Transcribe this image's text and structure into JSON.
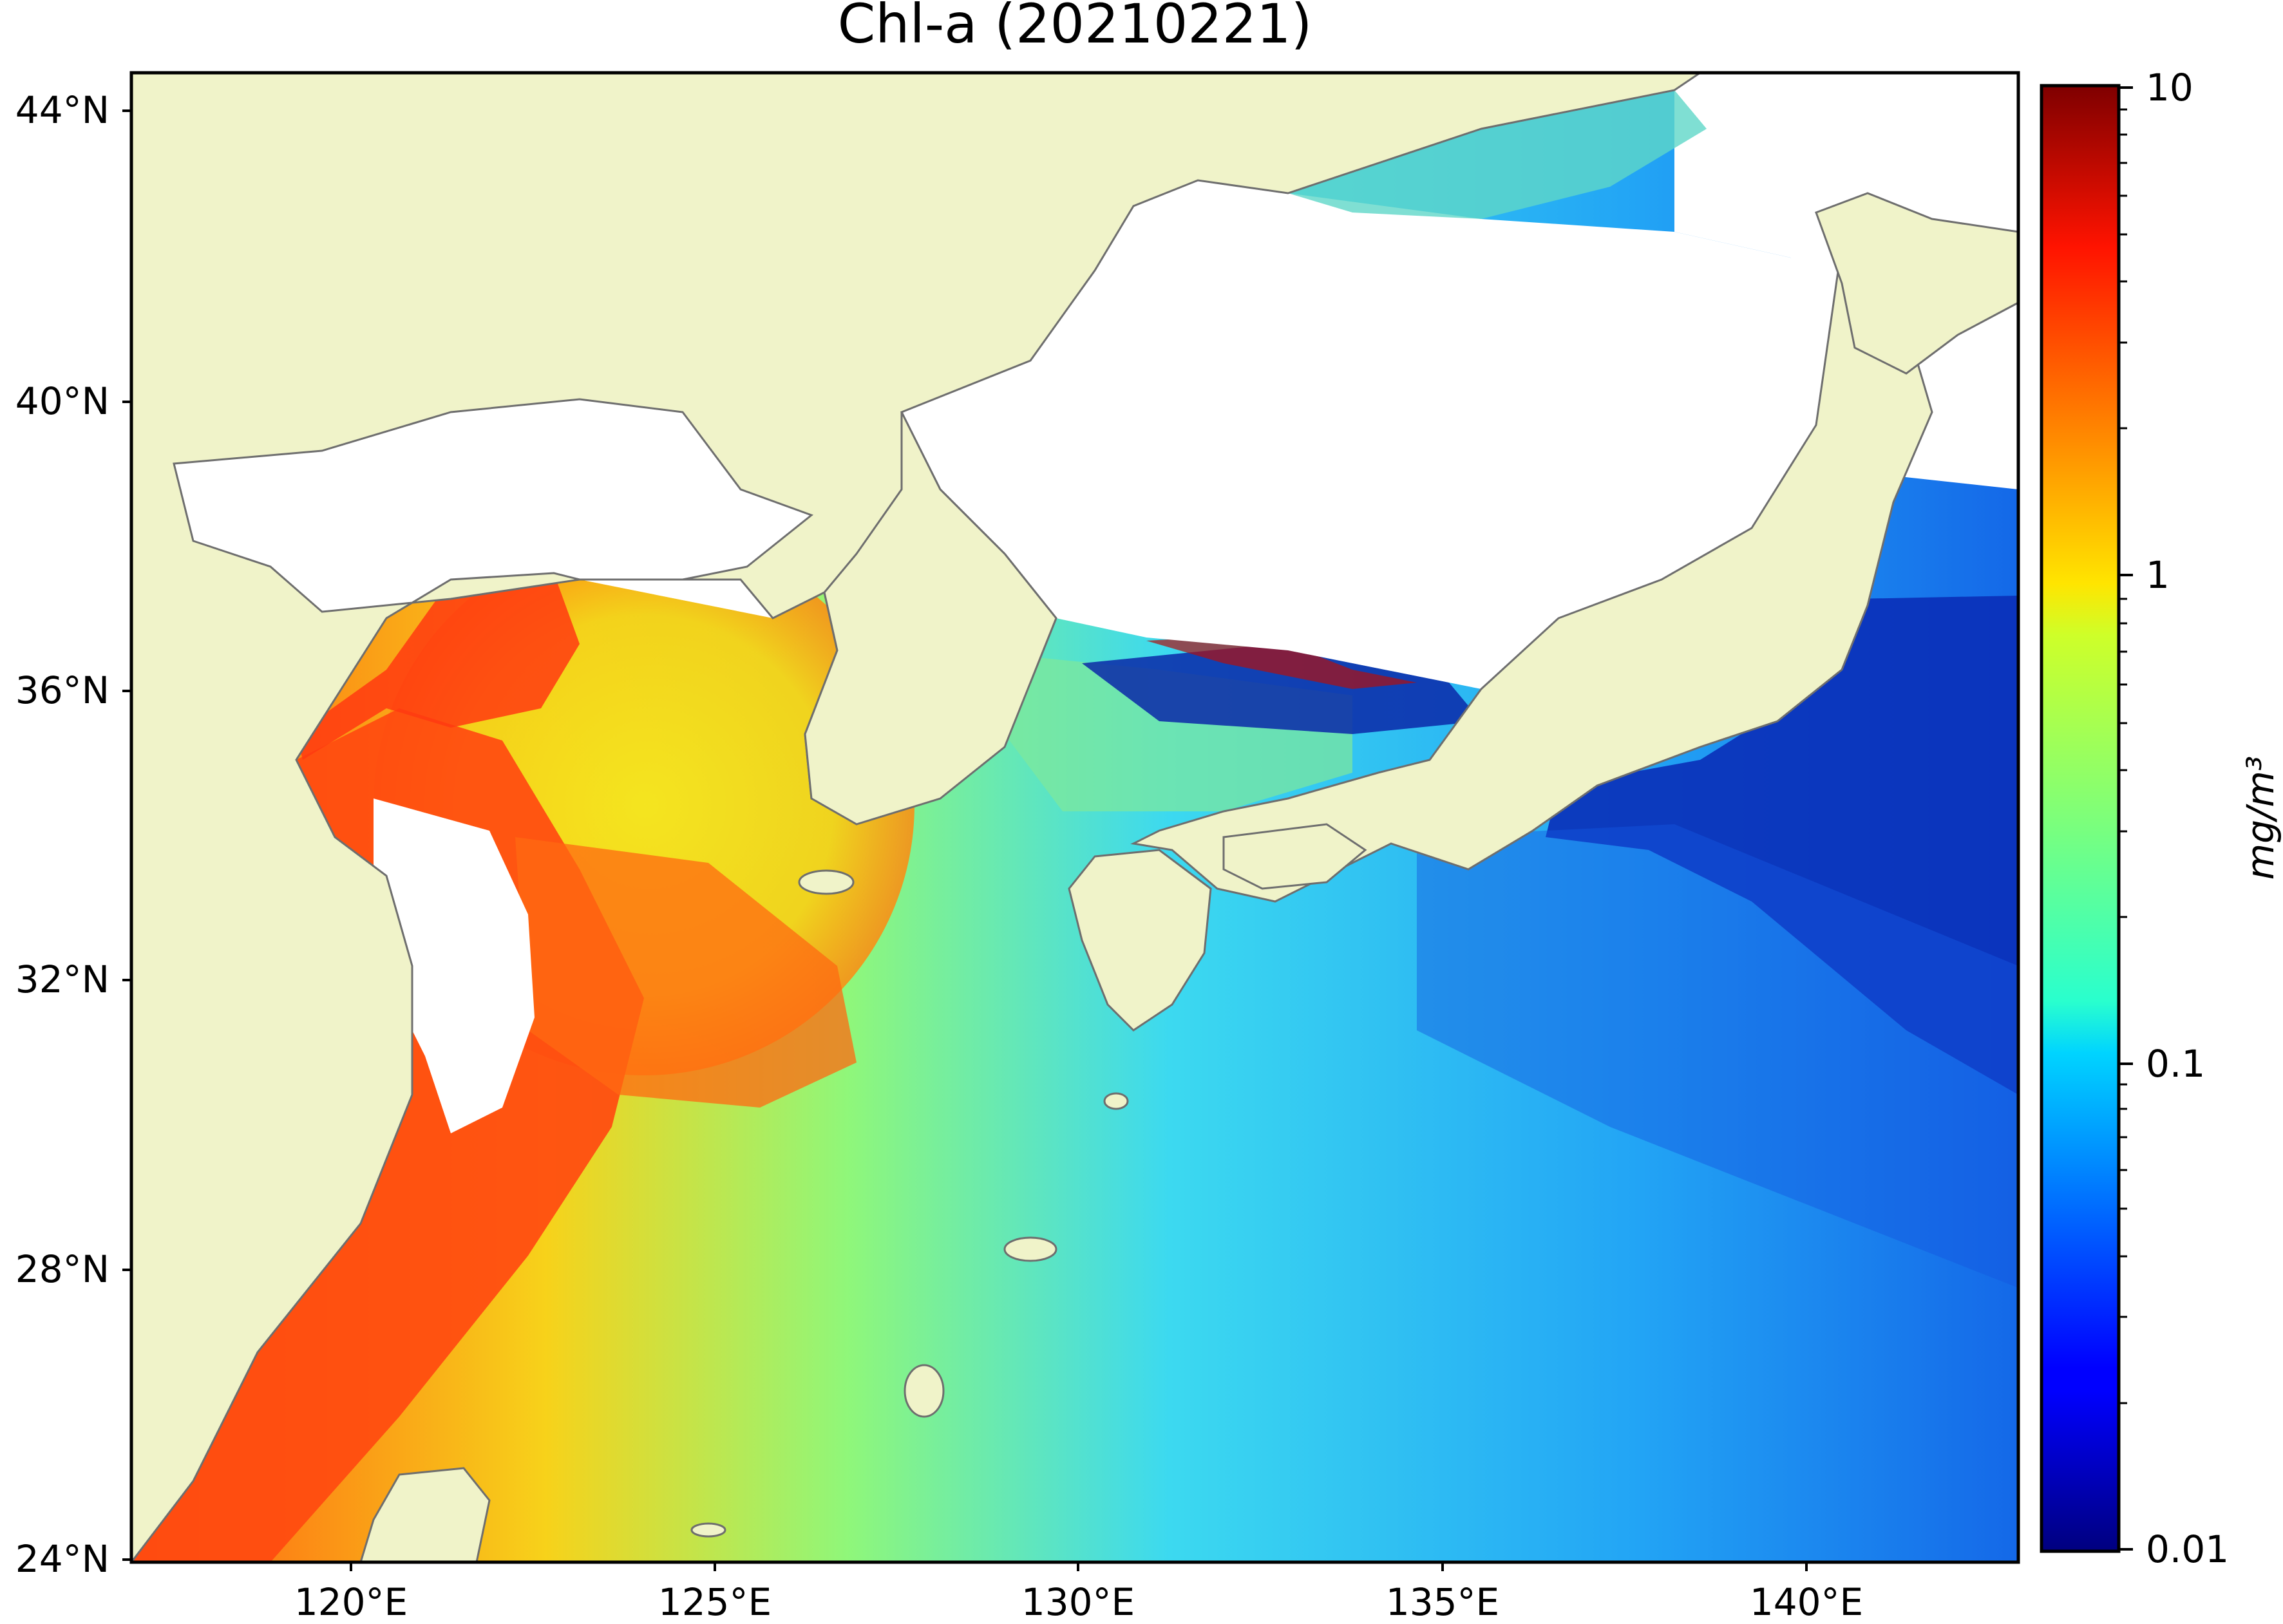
{
  "title": "Chl-a (20210221)",
  "axes": {
    "lat_ticks": [
      "44°N",
      "40°N",
      "36°N",
      "32°N",
      "28°N",
      "24°N"
    ],
    "lon_ticks": [
      "120°E",
      "125°E",
      "130°E",
      "135°E",
      "140°E"
    ]
  },
  "colorbar": {
    "label": "mg/m³",
    "tick_labels": [
      "10",
      "1",
      "0.1",
      "0.01"
    ],
    "scale": "log",
    "range": [
      0.01,
      10
    ],
    "colormap": "jet"
  },
  "colors": {
    "land": "#f0f3c9",
    "no_data": "#ffffff",
    "coastline": "#6e6e6e"
  }
}
